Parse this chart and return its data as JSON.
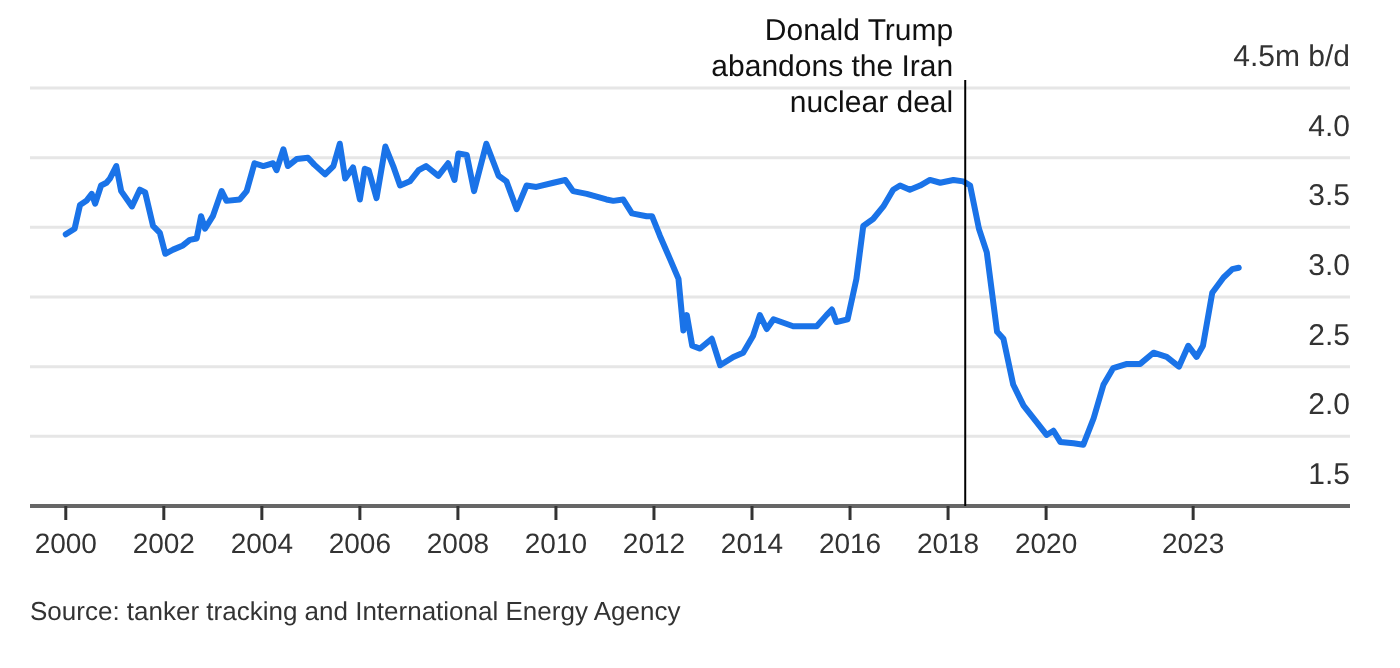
{
  "chart_data": {
    "type": "line",
    "x": [
      2000.0,
      2000.18,
      2000.29,
      2000.42,
      2000.53,
      2000.6,
      2000.72,
      2000.83,
      2000.9,
      2001.03,
      2001.13,
      2001.35,
      2001.51,
      2001.62,
      2001.78,
      2001.92,
      2002.03,
      2002.19,
      2002.39,
      2002.53,
      2002.67,
      2002.76,
      2002.84,
      2003.0,
      2003.18,
      2003.28,
      2003.55,
      2003.69,
      2003.85,
      2004.03,
      2004.23,
      2004.3,
      2004.44,
      2004.53,
      2004.71,
      2004.94,
      2005.07,
      2005.29,
      2005.46,
      2005.59,
      2005.7,
      2005.86,
      2006.0,
      2006.1,
      2006.18,
      2006.34,
      2006.52,
      2006.68,
      2006.82,
      2007.02,
      2007.2,
      2007.35,
      2007.6,
      2007.8,
      2007.93,
      2008.01,
      2008.18,
      2008.33,
      2008.58,
      2008.83,
      2008.99,
      2009.2,
      2009.4,
      2009.6,
      2009.95,
      2010.19,
      2010.35,
      2010.63,
      2011.03,
      2011.17,
      2011.37,
      2011.55,
      2011.85,
      2011.96,
      2012.12,
      2012.33,
      2012.5,
      2012.6,
      2012.67,
      2012.78,
      2012.94,
      2013.18,
      2013.35,
      2013.62,
      2013.82,
      2014.02,
      2014.16,
      2014.3,
      2014.44,
      2014.84,
      2015.32,
      2015.52,
      2015.63,
      2015.72,
      2015.95,
      2016.13,
      2016.27,
      2016.47,
      2016.68,
      2016.88,
      2017.02,
      2017.22,
      2017.43,
      2017.63,
      2017.84,
      2018.11,
      2018.31,
      2018.45,
      2018.63,
      2018.79,
      2019.0,
      2019.13,
      2019.33,
      2019.54,
      2019.81,
      2020.01,
      2020.15,
      2020.29,
      2020.56,
      2020.76,
      2020.97,
      2021.17,
      2021.37,
      2021.65,
      2021.92,
      2022.19,
      2022.46,
      2022.71,
      2022.9,
      2023.07,
      2023.2,
      2023.39,
      2023.62,
      2023.8,
      2023.93
    ],
    "series": [
      {
        "color": "#1a73e8",
        "values": [
          3.45,
          3.49,
          3.66,
          3.69,
          3.74,
          3.67,
          3.8,
          3.82,
          3.85,
          3.94,
          3.76,
          3.65,
          3.77,
          3.75,
          3.51,
          3.46,
          3.31,
          3.34,
          3.37,
          3.41,
          3.42,
          3.58,
          3.49,
          3.58,
          3.76,
          3.69,
          3.7,
          3.76,
          3.96,
          3.94,
          3.96,
          3.91,
          4.06,
          3.94,
          3.99,
          4.0,
          3.95,
          3.88,
          3.94,
          4.1,
          3.85,
          3.93,
          3.7,
          3.92,
          3.91,
          3.71,
          4.08,
          3.94,
          3.8,
          3.83,
          3.91,
          3.94,
          3.87,
          3.96,
          3.84,
          4.03,
          4.02,
          3.76,
          4.1,
          3.87,
          3.83,
          3.63,
          3.8,
          3.79,
          3.82,
          3.84,
          3.76,
          3.74,
          3.7,
          3.69,
          3.7,
          3.6,
          3.58,
          3.58,
          3.44,
          3.27,
          3.13,
          2.76,
          2.87,
          2.65,
          2.63,
          2.7,
          2.51,
          2.57,
          2.6,
          2.72,
          2.87,
          2.77,
          2.84,
          2.79,
          2.79,
          2.87,
          2.91,
          2.82,
          2.84,
          3.13,
          3.51,
          3.56,
          3.65,
          3.77,
          3.8,
          3.77,
          3.8,
          3.84,
          3.82,
          3.84,
          3.83,
          3.8,
          3.49,
          3.32,
          2.75,
          2.7,
          2.37,
          2.22,
          2.1,
          2.01,
          2.04,
          1.96,
          1.95,
          1.94,
          2.13,
          2.37,
          2.49,
          2.52,
          2.52,
          2.6,
          2.57,
          2.5,
          2.65,
          2.57,
          2.65,
          3.03,
          3.14,
          3.2,
          3.21
        ]
      }
    ],
    "xlim": [
      1999.27,
      2026.2
    ],
    "xticks": [
      2000,
      2002,
      2004,
      2006,
      2008,
      2010,
      2012,
      2014,
      2016,
      2018,
      2020,
      2023
    ],
    "ylim": [
      1.5,
      4.5
    ],
    "yticks": [
      1.5,
      {
        "value": 2,
        "label": "2.0"
      },
      2.5,
      {
        "value": 3,
        "label": "3.0"
      },
      3.5,
      {
        "value": 4,
        "label": "4.0"
      },
      {
        "value": 4.5,
        "label": "4.5m b/d"
      }
    ],
    "grid": "y",
    "ref_lines": [
      {
        "axis": "x",
        "value": 2018.35,
        "label": "Donald Trump\nabandons the Iran\nnuclear deal",
        "color": "#000000"
      }
    ],
    "annotations": [
      "Source: tanker tracking and International Energy Agency"
    ]
  }
}
